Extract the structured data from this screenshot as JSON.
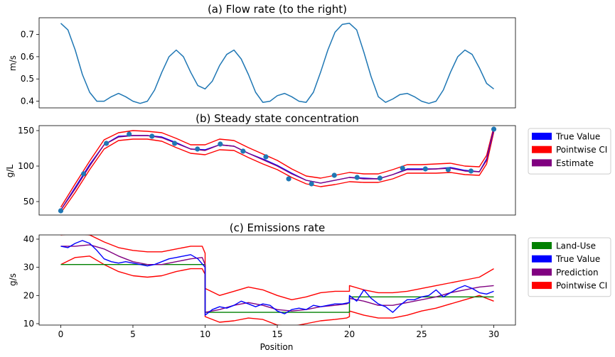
{
  "chart_data": [
    {
      "type": "line",
      "title": "(a) Flow rate (to the right)",
      "ylabel": "m/s",
      "xlabel": "",
      "xlim": [
        -1.5,
        31.5
      ],
      "ylim": [
        0.37,
        0.775
      ],
      "yticks": [
        0.4,
        0.5,
        0.6,
        0.7
      ],
      "ytick_labels": [
        "0.4",
        "0.5",
        "0.6",
        "0.7"
      ],
      "grid": false,
      "series": [
        {
          "color": "#1f77b4",
          "x": [
            0,
            0.5,
            1,
            1.5,
            2,
            2.5,
            3,
            3.5,
            4,
            4.5,
            5,
            5.5,
            6,
            6.5,
            7,
            7.5,
            8,
            8.5,
            9,
            9.5,
            10,
            10.5,
            11,
            11.5,
            12,
            12.5,
            13,
            13.5,
            14,
            14.5,
            15,
            15.5,
            16,
            16.5,
            17,
            17.5,
            18,
            18.5,
            19,
            19.5,
            20,
            20.5,
            21,
            21.5,
            22,
            22.5,
            23,
            23.5,
            24,
            24.5,
            25,
            25.5,
            26,
            26.5,
            27,
            27.5,
            28,
            28.5,
            29,
            29.5,
            30
          ],
          "values": [
            0.75,
            0.72,
            0.63,
            0.52,
            0.44,
            0.4,
            0.4,
            0.42,
            0.435,
            0.42,
            0.4,
            0.39,
            0.4,
            0.45,
            0.53,
            0.6,
            0.63,
            0.6,
            0.53,
            0.47,
            0.455,
            0.49,
            0.56,
            0.61,
            0.63,
            0.59,
            0.52,
            0.44,
            0.395,
            0.4,
            0.425,
            0.435,
            0.42,
            0.4,
            0.395,
            0.44,
            0.53,
            0.63,
            0.71,
            0.745,
            0.75,
            0.72,
            0.62,
            0.51,
            0.42,
            0.395,
            0.41,
            0.43,
            0.435,
            0.42,
            0.4,
            0.39,
            0.4,
            0.45,
            0.53,
            0.6,
            0.63,
            0.61,
            0.55,
            0.48,
            0.455
          ]
        }
      ]
    },
    {
      "type": "line",
      "title": "(b) Steady state concentration",
      "ylabel": "g/L",
      "xlabel": "",
      "xlim": [
        -1.5,
        31.5
      ],
      "ylim": [
        31,
        157
      ],
      "yticks": [
        50,
        100,
        150
      ],
      "ytick_labels": [
        "50",
        "100",
        "150"
      ],
      "grid": false,
      "legend": {
        "placement": "outside-right",
        "entries": [
          {
            "label": "True Value",
            "color": "#0000ff"
          },
          {
            "label": "Pointwise CI",
            "color": "#ff0000"
          },
          {
            "label": "Estimate",
            "color": "#800080"
          }
        ]
      },
      "x": [
        0,
        1,
        2,
        3,
        4,
        5,
        6,
        7,
        8,
        9,
        10,
        11,
        12,
        13,
        14,
        15,
        16,
        17,
        18,
        19,
        20,
        21,
        22,
        23,
        24,
        25,
        26,
        27,
        28,
        29,
        29.5,
        30
      ],
      "series": [
        {
          "name": "True Value",
          "color": "#0000ff",
          "values": [
            38,
            70,
            102,
            130,
            142,
            143,
            143,
            141,
            133,
            124,
            123,
            130,
            128,
            118,
            110,
            101,
            90,
            80,
            76,
            80,
            84,
            83,
            82,
            88,
            96,
            96,
            96,
            98,
            94,
            92,
            110,
            152
          ]
        },
        {
          "name": "Estimate",
          "color": "#800080",
          "values": [
            38,
            68,
            100,
            130,
            141,
            143,
            143,
            140,
            132,
            124,
            122,
            130,
            128,
            118,
            109,
            100,
            89,
            80,
            76,
            80,
            84,
            82,
            82,
            88,
            95,
            95,
            96,
            97,
            93,
            92,
            108,
            150
          ]
        },
        {
          "name": "Pointwise CI upper",
          "color": "#ff0000",
          "values": [
            42,
            75,
            107,
            137,
            147,
            150,
            149,
            147,
            139,
            130,
            130,
            138,
            136,
            126,
            117,
            108,
            96,
            86,
            83,
            87,
            91,
            89,
            89,
            95,
            102,
            102,
            103,
            104,
            100,
            99,
            115,
            155
          ]
        },
        {
          "name": "Pointwise CI lower",
          "color": "#ff0000",
          "values": [
            34,
            63,
            95,
            124,
            136,
            138,
            138,
            135,
            126,
            118,
            116,
            123,
            122,
            112,
            103,
            95,
            84,
            75,
            71,
            74,
            78,
            77,
            77,
            82,
            90,
            90,
            90,
            91,
            88,
            87,
            103,
            148
          ]
        }
      ],
      "scatter": {
        "color": "#1f77b4",
        "x": [
          0,
          1.58,
          3.16,
          4.74,
          6.32,
          7.89,
          9.47,
          11.05,
          12.63,
          14.21,
          15.79,
          17.37,
          18.95,
          20.53,
          22.11,
          23.68,
          25.26,
          26.84,
          28.42,
          30
        ],
        "values": [
          37,
          89,
          132,
          145,
          142,
          132,
          124,
          131,
          121,
          113,
          82,
          75,
          87,
          84,
          83,
          97,
          96,
          95,
          93,
          152
        ]
      }
    },
    {
      "type": "line",
      "title": "(c) Emissions rate",
      "ylabel": "g/s",
      "xlabel": "Position",
      "xlim": [
        -1.5,
        31.5
      ],
      "ylim": [
        9.5,
        41.5
      ],
      "yticks": [
        10,
        20,
        30,
        40
      ],
      "ytick_labels": [
        "10",
        "20",
        "30",
        "40"
      ],
      "xticks": [
        0,
        5,
        10,
        15,
        20,
        25,
        30
      ],
      "xtick_labels": [
        "0",
        "5",
        "10",
        "15",
        "20",
        "25",
        "30"
      ],
      "grid": false,
      "legend": {
        "placement": "outside-right",
        "entries": [
          {
            "label": "Land-Use",
            "color": "#008000"
          },
          {
            "label": "True Value",
            "color": "#0000ff"
          },
          {
            "label": "Prediction",
            "color": "#800080"
          },
          {
            "label": "Pointwise CI",
            "color": "#ff0000"
          }
        ]
      },
      "series": [
        {
          "name": "Land-Use",
          "color": "#008000",
          "x": [
            0,
            10,
            10,
            20,
            20,
            30
          ],
          "values": [
            31,
            31,
            14,
            14,
            19.5,
            19.5
          ]
        },
        {
          "name": "True Value",
          "color": "#0000ff",
          "x": [
            0,
            0.5,
            1,
            1.5,
            2,
            2.5,
            3,
            3.5,
            4,
            4.5,
            5,
            5.5,
            6,
            6.5,
            7,
            7.5,
            8,
            8.5,
            9,
            9.5,
            10,
            10,
            10.5,
            11,
            11.5,
            12,
            12.5,
            13,
            13.5,
            14,
            14.5,
            15,
            15.5,
            16,
            16.5,
            17,
            17.5,
            18,
            18.5,
            19,
            19.5,
            20,
            20,
            20.5,
            21,
            21.5,
            22,
            22.5,
            23,
            23.5,
            24,
            24.5,
            25,
            25.5,
            26,
            26.5,
            27,
            27.5,
            28,
            28.5,
            29,
            29.5,
            30
          ],
          "values": [
            37.5,
            37,
            38.5,
            39.5,
            38.5,
            36,
            33,
            32,
            31.5,
            32,
            31.5,
            31,
            30.5,
            31,
            32,
            33,
            33.5,
            34,
            34.5,
            33,
            30,
            13,
            15,
            16,
            15.5,
            16.5,
            18,
            17,
            16,
            17,
            16.5,
            14.5,
            13.5,
            15,
            15.5,
            15,
            16.5,
            16,
            16.5,
            17,
            17,
            17.5,
            20,
            18,
            22,
            19,
            17,
            16,
            14,
            16.5,
            18.5,
            18.5,
            19.5,
            20,
            22,
            19.5,
            21,
            22.5,
            23.5,
            22.5,
            21,
            20.5,
            21.5
          ]
        },
        {
          "name": "Prediction",
          "color": "#800080",
          "x": [
            0,
            1,
            2,
            3,
            4,
            5,
            6,
            7,
            8,
            9,
            9.8,
            10,
            10,
            11,
            12,
            13,
            14,
            15,
            16,
            17,
            18,
            19,
            19.8,
            20,
            20,
            21,
            22,
            23,
            24,
            25,
            26,
            27,
            28,
            29,
            30
          ],
          "values": [
            37.5,
            37.5,
            38,
            36.5,
            34,
            32,
            31,
            31,
            32,
            33,
            33.5,
            31,
            14,
            15,
            16.5,
            17.5,
            16.5,
            15,
            14.5,
            15,
            16,
            16.5,
            17,
            17.5,
            19,
            18,
            16.5,
            16.5,
            17.5,
            18.5,
            19.5,
            21,
            22,
            23,
            23.5
          ]
        },
        {
          "name": "Pointwise CI upper",
          "color": "#ff0000",
          "x": [
            0,
            1,
            2,
            3,
            4,
            5,
            6,
            7,
            8,
            9,
            9.8,
            10,
            10,
            11,
            12,
            13,
            14,
            15,
            16,
            17,
            18,
            19,
            19.8,
            20,
            20,
            21,
            22,
            23,
            24,
            25,
            26,
            27,
            28,
            29,
            30
          ],
          "values": [
            41.5,
            42,
            41.5,
            39,
            37,
            36,
            35.5,
            35.5,
            36.5,
            37.5,
            37.5,
            35,
            22.5,
            20,
            21.5,
            23,
            22,
            20,
            18.5,
            19.5,
            21,
            21.5,
            21.5,
            21.5,
            23.5,
            22,
            21,
            21,
            21.5,
            22.5,
            23.5,
            24.5,
            25.5,
            26.5,
            29.5
          ]
        },
        {
          "name": "Pointwise CI lower",
          "color": "#ff0000",
          "x": [
            0,
            1,
            2,
            3,
            4,
            5,
            6,
            7,
            8,
            9,
            9.8,
            10,
            10,
            11,
            12,
            13,
            14,
            15,
            16,
            17,
            18,
            19,
            19.8,
            20,
            20,
            21,
            22,
            23,
            24,
            25,
            26,
            27,
            28,
            29,
            30
          ],
          "values": [
            31,
            33.5,
            34,
            31,
            28.5,
            27,
            26.5,
            27,
            28.5,
            29.5,
            29.5,
            27.5,
            12.5,
            10.5,
            11,
            12,
            11.5,
            9.5,
            9,
            10,
            11,
            11.5,
            12,
            12.5,
            14.5,
            13,
            12,
            12,
            13,
            14.5,
            15.5,
            17,
            18.5,
            20,
            18
          ]
        }
      ]
    }
  ]
}
